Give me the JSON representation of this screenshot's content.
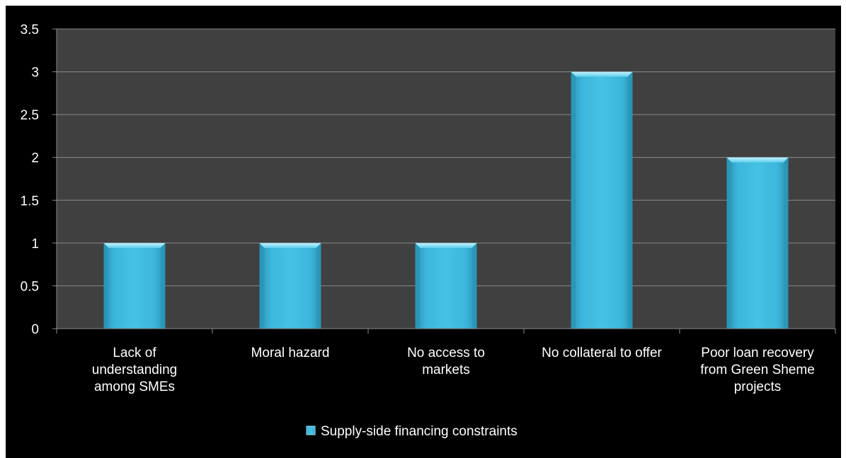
{
  "chart_data": {
    "type": "bar",
    "categories": [
      [
        "Lack of",
        "understanding",
        "among SMEs"
      ],
      [
        "Moral hazard"
      ],
      [
        "No access to",
        "markets"
      ],
      [
        "No collateral to offer"
      ],
      [
        "Poor loan recovery",
        "from Green Sheme",
        "projects"
      ]
    ],
    "series": [
      {
        "name": "Supply-side financing constraints",
        "values": [
          1,
          1,
          1,
          3,
          2
        ]
      }
    ],
    "ylim": [
      0,
      3.5
    ],
    "yticks": [
      "0",
      "0.5",
      "1",
      "1.5",
      "2",
      "2.5",
      "3",
      "3.5"
    ],
    "grid": true,
    "legend_position": "bottom",
    "colors": {
      "background": "#000000",
      "plot_area": "#404040",
      "gridline": "#8a8a8a",
      "bar_light": "#5fd0ee",
      "bar_mid": "#3cb6db",
      "bar_dark": "#2a93b5",
      "bar_top": "#9be6f8"
    }
  }
}
